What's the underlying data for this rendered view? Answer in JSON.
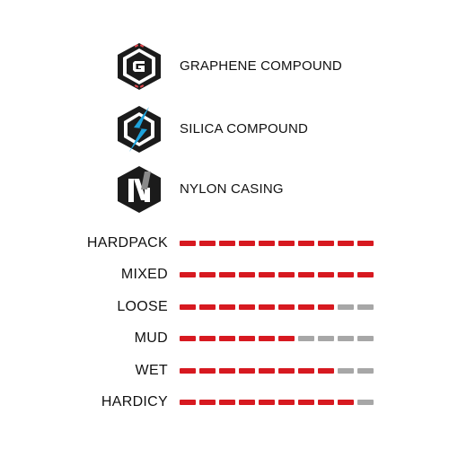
{
  "features": [
    {
      "id": "graphene",
      "icon": "graphene-g-icon",
      "label": "GRAPHENE COMPOUND"
    },
    {
      "id": "silica",
      "icon": "silica-lightning-icon",
      "label": "SILICA COMPOUND"
    },
    {
      "id": "nylon",
      "icon": "nylon-n-icon",
      "label": "NYLON CASING"
    }
  ],
  "ratings": {
    "max": 10,
    "items": [
      {
        "label": "HARDPACK",
        "value": 10
      },
      {
        "label": "MIXED",
        "value": 10
      },
      {
        "label": "LOOSE",
        "value": 8
      },
      {
        "label": "MUD",
        "value": 6
      },
      {
        "label": "WET",
        "value": 8
      },
      {
        "label": "HARDICY",
        "value": 9
      }
    ]
  },
  "colors": {
    "filled": "#d71920",
    "empty": "#a7a7a7",
    "icon_dark": "#1b1b1b",
    "graphene_accent": "#e0444a",
    "silica_accent": "#1ea3dc",
    "nylon_accent": "#8a8a8a"
  }
}
